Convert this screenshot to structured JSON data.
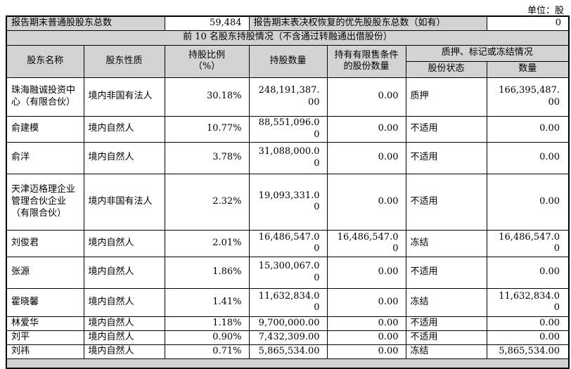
{
  "unit_label": "单位：股",
  "summary": {
    "common_label": "报告期末普通股股东总数",
    "common_value": "59,484",
    "preferred_label": "报告期末表决权恢复的优先股股东总数（如有）",
    "preferred_value": "0"
  },
  "section_title": "前 10 名股东持股情况（不含通过转融通出借股份）",
  "table": {
    "headers": {
      "name": "股东名称",
      "nature": "股东性质",
      "ratio_line1": "持股比例",
      "ratio_line2": "（%）",
      "shares": "持股数量",
      "restricted": "持有有限售条件的股份数量",
      "pledge_group": "质押、标记或冻结情况",
      "status": "股份状态",
      "quantity": "数量"
    },
    "rows": [
      {
        "name": "珠海融诚投资中心（有限合伙）",
        "nature": "境内非国有法人",
        "ratio": "30.18%",
        "shares": "248,191,387.00",
        "restricted": "0.00",
        "status": "质押",
        "quantity": "166,395,487.00"
      },
      {
        "name": "俞建模",
        "nature": "境内自然人",
        "ratio": "10.77%",
        "shares": "88,551,096.00",
        "restricted": "0.00",
        "status": "不适用",
        "quantity": "0.00"
      },
      {
        "name": "俞洋",
        "nature": "境内自然人",
        "ratio": "3.78%",
        "shares": "31,088,000.00",
        "restricted": "0.00",
        "status": "不适用",
        "quantity": "0.00"
      },
      {
        "name": "天津迈格理企业管理合伙企业（有限合伙）",
        "nature": "境内非国有法人",
        "ratio": "2.32%",
        "shares": "19,093,331.00",
        "restricted": "0.00",
        "status": "不适用",
        "quantity": "0.00"
      },
      {
        "name": "刘俊君",
        "nature": "境内自然人",
        "ratio": "2.01%",
        "shares": "16,486,547.00",
        "restricted": "16,486,547.00",
        "status": "冻结",
        "quantity": "16,486,547.00"
      },
      {
        "name": "张源",
        "nature": "境内自然人",
        "ratio": "1.86%",
        "shares": "15,300,067.00",
        "restricted": "0.00",
        "status": "不适用",
        "quantity": "0.00"
      },
      {
        "name": "霍晓馨",
        "nature": "境内自然人",
        "ratio": "1.41%",
        "shares": "11,632,834.00",
        "restricted": "0.00",
        "status": "冻结",
        "quantity": "11,632,834.00"
      },
      {
        "name": "林爱华",
        "nature": "境内自然人",
        "ratio": "1.18%",
        "shares": "9,700,000.00",
        "restricted": "0.00",
        "status": "不适用",
        "quantity": "0.00"
      },
      {
        "name": "刘平",
        "nature": "境内自然人",
        "ratio": "0.90%",
        "shares": "7,432,309.00",
        "restricted": "0.00",
        "status": "不适用",
        "quantity": "0.00"
      },
      {
        "name": "刘祎",
        "nature": "境内自然人",
        "ratio": "0.71%",
        "shares": "5,865,534.00",
        "restricted": "0.00",
        "status": "冻结",
        "quantity": "5,865,534.00"
      }
    ]
  },
  "colors": {
    "header_bg": "#d3d3d3",
    "border": "#000000",
    "text": "#000000"
  }
}
